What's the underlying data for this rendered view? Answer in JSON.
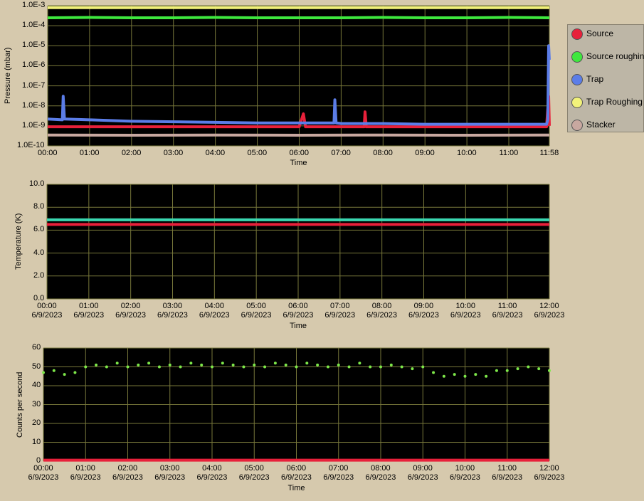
{
  "chart_data": [
    {
      "type": "line",
      "ylabel": "Pressure (mbar)",
      "xlabel": "Time",
      "log": true,
      "grid": true,
      "legend": "right",
      "ylim": [
        1e-10,
        0.001
      ],
      "yticks": [
        {
          "value": 1e-10,
          "label": "1.0E-10"
        },
        {
          "value": 1e-09,
          "label": "1.0E-9"
        },
        {
          "value": 1e-08,
          "label": "1.0E-8"
        },
        {
          "value": 1e-07,
          "label": "1.0E-7"
        },
        {
          "value": 1e-06,
          "label": "1.0E-6"
        },
        {
          "value": 1e-05,
          "label": "1.0E-5"
        },
        {
          "value": 0.0001,
          "label": "1.0E-4"
        },
        {
          "value": 0.001,
          "label": "1.0E-3"
        }
      ],
      "xlim": [
        0,
        11.967
      ],
      "xticks": [
        {
          "value": 0,
          "label": "00:00"
        },
        {
          "value": 1,
          "label": "01:00"
        },
        {
          "value": 2,
          "label": "02:00"
        },
        {
          "value": 3,
          "label": "03:00"
        },
        {
          "value": 4,
          "label": "04:00"
        },
        {
          "value": 5,
          "label": "05:00"
        },
        {
          "value": 6,
          "label": "06:00"
        },
        {
          "value": 7,
          "label": "07:00"
        },
        {
          "value": 8,
          "label": "08:00"
        },
        {
          "value": 9,
          "label": "09:00"
        },
        {
          "value": 10,
          "label": "10:00"
        },
        {
          "value": 11,
          "label": "11:00"
        },
        {
          "value": 11.967,
          "label": "11:58"
        }
      ],
      "series": [
        {
          "name": "Source",
          "color": "#e8203a",
          "x": [
            0,
            1,
            2,
            3,
            4,
            5,
            6,
            6.1,
            6.15,
            7,
            7.55,
            7.57,
            7.6,
            8,
            9,
            10,
            11,
            11.9,
            11.95,
            11.967
          ],
          "values": [
            9e-10,
            9e-10,
            9e-10,
            9e-10,
            9e-10,
            9e-10,
            9e-10,
            4e-09,
            9e-10,
            9e-10,
            9e-10,
            5e-09,
            9e-10,
            9e-10,
            9e-10,
            9e-10,
            9e-10,
            9e-10,
            3e-08,
            1e-09
          ]
        },
        {
          "name": "Source roughin",
          "color": "#3ee83e",
          "x": [
            0,
            1,
            2,
            3,
            4,
            5,
            6,
            7,
            8,
            9,
            10,
            11,
            11.967
          ],
          "values": [
            0.00025,
            0.00026,
            0.00025,
            0.00025,
            0.00026,
            0.00025,
            0.00025,
            0.00025,
            0.00026,
            0.00025,
            0.00025,
            0.00026,
            0.00025
          ]
        },
        {
          "name": "Trap",
          "color": "#5b7de8",
          "x": [
            0,
            0.35,
            0.37,
            0.4,
            1,
            2,
            3,
            4,
            5,
            6,
            6.83,
            6.85,
            6.88,
            7,
            8,
            9,
            10,
            11,
            11.9,
            11.93,
            11.95,
            11.967
          ],
          "values": [
            2.2e-09,
            2e-09,
            3e-08,
            2.2e-09,
            2e-09,
            1.7e-09,
            1.6e-09,
            1.5e-09,
            1.4e-09,
            1.4e-09,
            1.4e-09,
            2e-08,
            1.4e-09,
            1.3e-09,
            1.3e-09,
            1.2e-09,
            1.2e-09,
            1.2e-09,
            1.2e-09,
            2e-09,
            1e-05,
            2e-06
          ]
        },
        {
          "name": "Trap Roughing",
          "color": "#f2f27a",
          "x": [
            0,
            2,
            4,
            6,
            8,
            10,
            11.967
          ],
          "values": [
            0.0008,
            0.0008,
            0.0008,
            0.0008,
            0.0008,
            0.0008,
            0.0008
          ]
        },
        {
          "name": "Stacker",
          "color": "#c8a8a0",
          "x": [
            0,
            2,
            4,
            6,
            8,
            10,
            11.967
          ],
          "values": [
            3.5e-10,
            3.4e-10,
            3.5e-10,
            3.4e-10,
            3.5e-10,
            3.4e-10,
            3.5e-10
          ]
        }
      ]
    },
    {
      "type": "line",
      "ylabel": "Temperature (K)",
      "xlabel": "Time",
      "grid": true,
      "ylim": [
        0,
        10
      ],
      "yticks": [
        {
          "value": 0,
          "label": "0.0"
        },
        {
          "value": 2,
          "label": "2.0"
        },
        {
          "value": 4,
          "label": "4.0"
        },
        {
          "value": 6,
          "label": "6.0"
        },
        {
          "value": 8,
          "label": "8.0"
        },
        {
          "value": 10,
          "label": "10.0"
        }
      ],
      "xlim": [
        0,
        12
      ],
      "xticks": [
        {
          "value": 0,
          "label": "00:00\n6/9/2023"
        },
        {
          "value": 1,
          "label": "01:00\n6/9/2023"
        },
        {
          "value": 2,
          "label": "02:00\n6/9/2023"
        },
        {
          "value": 3,
          "label": "03:00\n6/9/2023"
        },
        {
          "value": 4,
          "label": "04:00\n6/9/2023"
        },
        {
          "value": 5,
          "label": "05:00\n6/9/2023"
        },
        {
          "value": 6,
          "label": "06:00\n6/9/2023"
        },
        {
          "value": 7,
          "label": "07:00\n6/9/2023"
        },
        {
          "value": 8,
          "label": "08:00\n6/9/2023"
        },
        {
          "value": 9,
          "label": "09:00\n6/9/2023"
        },
        {
          "value": 10,
          "label": "10:00\n6/9/2023"
        },
        {
          "value": 11,
          "label": "11:00\n6/9/2023"
        },
        {
          "value": 12,
          "label": "12:00\n6/9/2023"
        }
      ],
      "series": [
        {
          "color": "#3ad6b0",
          "x": [
            0,
            12
          ],
          "values": [
            6.9,
            6.9
          ]
        },
        {
          "color": "#e8203a",
          "x": [
            0,
            12
          ],
          "values": [
            6.5,
            6.5
          ]
        }
      ]
    },
    {
      "type": "scatter",
      "ylabel": "Counts per second",
      "xlabel": "Time",
      "grid": true,
      "ylim": [
        0,
        60
      ],
      "yticks": [
        0,
        10,
        20,
        30,
        40,
        50,
        60
      ],
      "xlim": [
        0,
        12
      ],
      "xticks": [
        {
          "value": 0,
          "label": "00:00\n6/9/2023"
        },
        {
          "value": 1,
          "label": "01:00\n6/9/2023"
        },
        {
          "value": 2,
          "label": "02:00\n6/9/2023"
        },
        {
          "value": 3,
          "label": "03:00\n6/9/2023"
        },
        {
          "value": 4,
          "label": "04:00\n6/9/2023"
        },
        {
          "value": 5,
          "label": "05:00\n6/9/2023"
        },
        {
          "value": 6,
          "label": "06:00\n6/9/2023"
        },
        {
          "value": 7,
          "label": "07:00\n6/9/2023"
        },
        {
          "value": 8,
          "label": "08:00\n6/9/2023"
        },
        {
          "value": 9,
          "label": "09:00\n6/9/2023"
        },
        {
          "value": 10,
          "label": "10:00\n6/9/2023"
        },
        {
          "value": 11,
          "label": "11:00\n6/9/2023"
        },
        {
          "value": 12,
          "label": "12:00\n6/9/2023"
        }
      ],
      "series": [
        {
          "color": "#7ee84a",
          "x": [
            0,
            0.25,
            0.5,
            0.75,
            1,
            1.25,
            1.5,
            1.75,
            2,
            2.25,
            2.5,
            2.75,
            3,
            3.25,
            3.5,
            3.75,
            4,
            4.25,
            4.5,
            4.75,
            5,
            5.25,
            5.5,
            5.75,
            6,
            6.25,
            6.5,
            6.75,
            7,
            7.25,
            7.5,
            7.75,
            8,
            8.25,
            8.5,
            8.75,
            9,
            9.25,
            9.5,
            9.75,
            10,
            10.25,
            10.5,
            10.75,
            11,
            11.25,
            11.5,
            11.75,
            12
          ],
          "values": [
            47,
            48,
            46,
            47,
            50,
            51,
            50,
            52,
            50,
            51,
            52,
            50,
            51,
            50,
            52,
            51,
            50,
            52,
            51,
            50,
            51,
            50,
            52,
            51,
            50,
            52,
            51,
            50,
            51,
            50,
            52,
            50,
            50,
            51,
            50,
            49,
            50,
            47,
            45,
            46,
            45,
            46,
            45,
            48,
            48,
            49,
            50,
            49,
            48
          ]
        },
        {
          "type": "line",
          "color": "#e8203a",
          "x": [
            0,
            12
          ],
          "values": [
            0.5,
            0.5
          ]
        }
      ]
    }
  ]
}
